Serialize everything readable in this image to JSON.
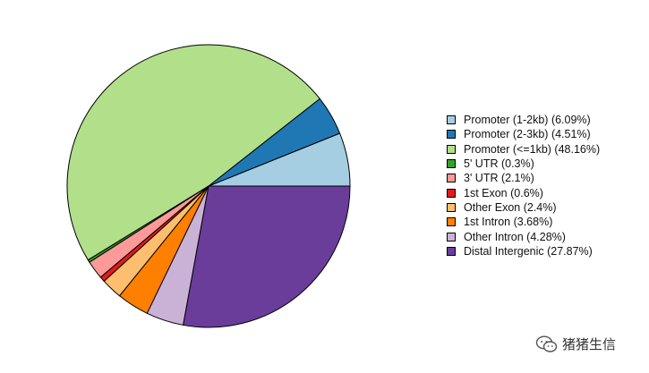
{
  "chart_data": {
    "type": "pie",
    "title": "",
    "legend_position": "right",
    "slices": [
      {
        "label": "Promoter (1-2kb) (6.09%)",
        "value": 6.09,
        "color": "#a6cee3"
      },
      {
        "label": "Promoter (2-3kb) (4.51%)",
        "value": 4.51,
        "color": "#1f78b4"
      },
      {
        "label": "Promoter (<=1kb) (48.16%)",
        "value": 48.16,
        "color": "#b2df8a"
      },
      {
        "label": "5' UTR (0.3%)",
        "value": 0.3,
        "color": "#33a02c"
      },
      {
        "label": "3' UTR (2.1%)",
        "value": 2.1,
        "color": "#fb9a99"
      },
      {
        "label": "1st Exon (0.6%)",
        "value": 0.6,
        "color": "#e31a1c"
      },
      {
        "label": "Other Exon (2.4%)",
        "value": 2.4,
        "color": "#fdbf6f"
      },
      {
        "label": "1st Intron (3.68%)",
        "value": 3.68,
        "color": "#ff7f00"
      },
      {
        "label": "Other Intron (4.28%)",
        "value": 4.28,
        "color": "#cab2d6"
      },
      {
        "label": "Distal Intergenic (27.87%)",
        "value": 27.87,
        "color": "#6a3d9a"
      }
    ]
  },
  "watermark": {
    "icon": "wechat-icon",
    "text": "猪猪生信"
  }
}
